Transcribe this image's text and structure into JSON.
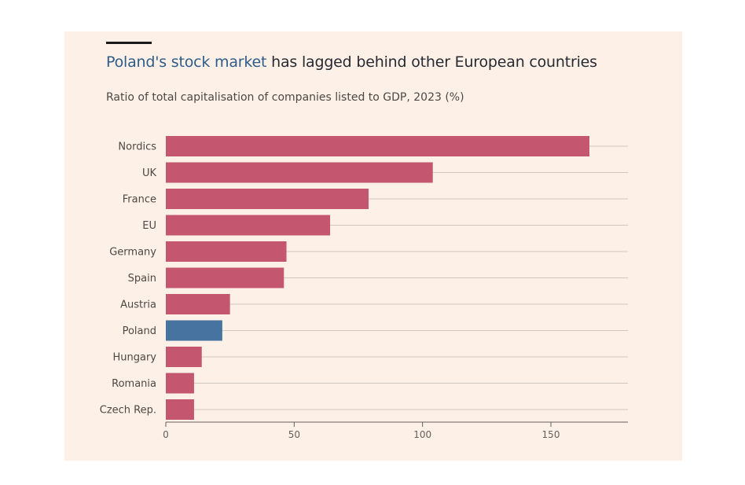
{
  "header": {
    "title_highlight": "Poland's stock market",
    "title_rest": " has lagged behind other European countries",
    "subtitle": "Ratio of total capitalisation of companies listed to GDP, 2023 (%)"
  },
  "colors": {
    "background": "#fdf0e6",
    "bar_default": "#c4566f",
    "bar_highlight": "#46739f",
    "gridline": "#cfc7c1",
    "title_highlight": "#2e5d8a"
  },
  "chart_data": {
    "type": "bar",
    "orientation": "horizontal",
    "title": "Poland's stock market has lagged behind other European countries",
    "subtitle": "Ratio of total capitalisation of companies listed to GDP, 2023 (%)",
    "xlabel": "",
    "ylabel": "",
    "xlim": [
      0,
      180
    ],
    "xticks": [
      0,
      50,
      100,
      150
    ],
    "grid": true,
    "categories": [
      "Nordics",
      "UK",
      "France",
      "EU",
      "Germany",
      "Spain",
      "Austria",
      "Poland",
      "Hungary",
      "Romania",
      "Czech Rep."
    ],
    "values": [
      165,
      104,
      79,
      64,
      47,
      46,
      25,
      22,
      14,
      11,
      11
    ],
    "highlight": "Poland"
  }
}
